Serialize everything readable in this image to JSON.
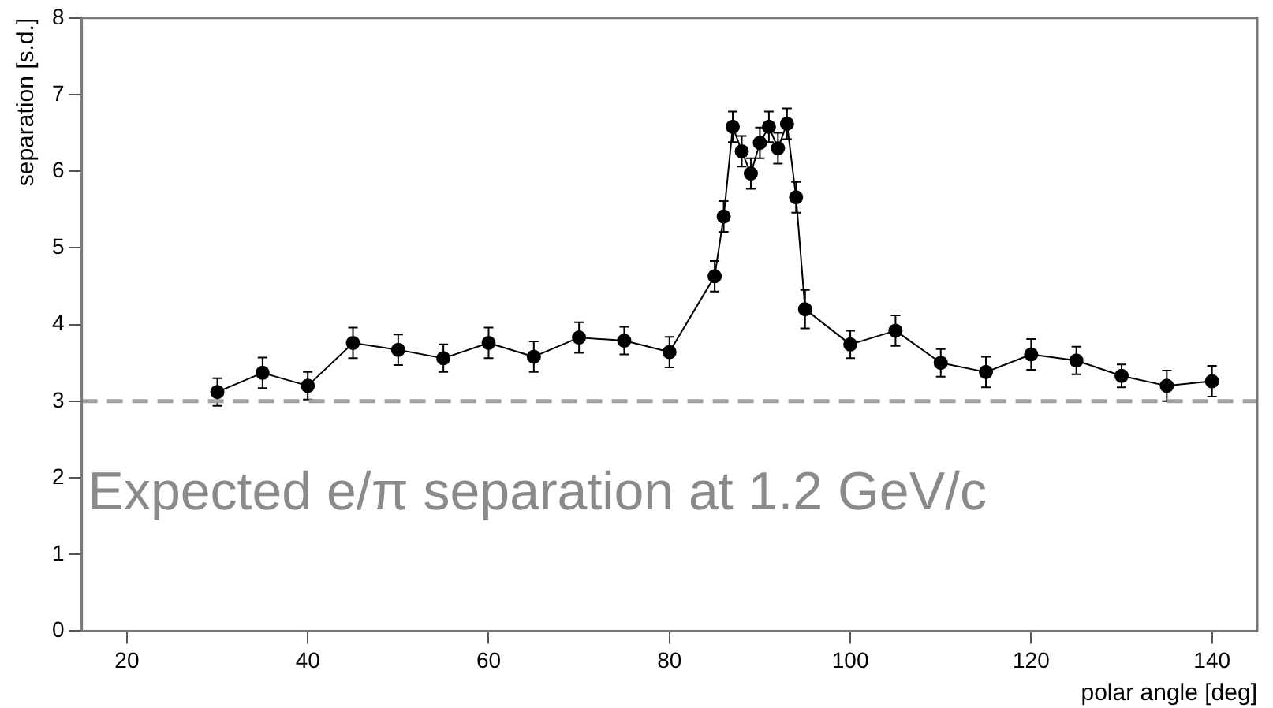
{
  "chart_data": {
    "type": "line",
    "xlabel": "polar angle [deg]",
    "ylabel": "separation [s.d.]",
    "x": [
      30,
      35,
      40,
      45,
      50,
      55,
      60,
      65,
      70,
      75,
      80,
      85,
      86,
      87,
      88,
      89,
      90,
      91,
      92,
      93,
      94,
      95,
      100,
      105,
      110,
      115,
      120,
      125,
      130,
      135,
      140
    ],
    "series": [
      {
        "color": "#000000",
        "values": [
          3.12,
          3.37,
          3.2,
          3.76,
          3.67,
          3.56,
          3.76,
          3.58,
          3.83,
          3.79,
          3.64,
          4.63,
          5.41,
          6.58,
          6.26,
          5.97,
          6.37,
          6.58,
          6.3,
          6.62,
          5.66,
          4.2,
          3.74,
          3.92,
          3.5,
          3.38,
          3.61,
          3.53,
          3.33,
          3.2,
          3.26
        ],
        "errors": [
          0.18,
          0.2,
          0.18,
          0.2,
          0.2,
          0.18,
          0.2,
          0.2,
          0.2,
          0.18,
          0.2,
          0.2,
          0.2,
          0.2,
          0.2,
          0.2,
          0.2,
          0.2,
          0.2,
          0.2,
          0.2,
          0.25,
          0.18,
          0.2,
          0.18,
          0.2,
          0.2,
          0.18,
          0.15,
          0.2,
          0.2
        ]
      }
    ],
    "xlim": [
      15,
      145
    ],
    "ylim": [
      0,
      8
    ],
    "xticks": [
      20,
      40,
      60,
      80,
      100,
      120,
      140
    ],
    "yticks": [
      0,
      1,
      2,
      3,
      4,
      5,
      6,
      7,
      8
    ],
    "ref_lines": [
      {
        "axis": "y",
        "value": 3,
        "label": "Expected e/π separation at 1.2 GeV/c",
        "color": "#a0a0a0",
        "line_style": "dashed"
      }
    ],
    "marker": "circle",
    "grid": false,
    "legend": false
  }
}
